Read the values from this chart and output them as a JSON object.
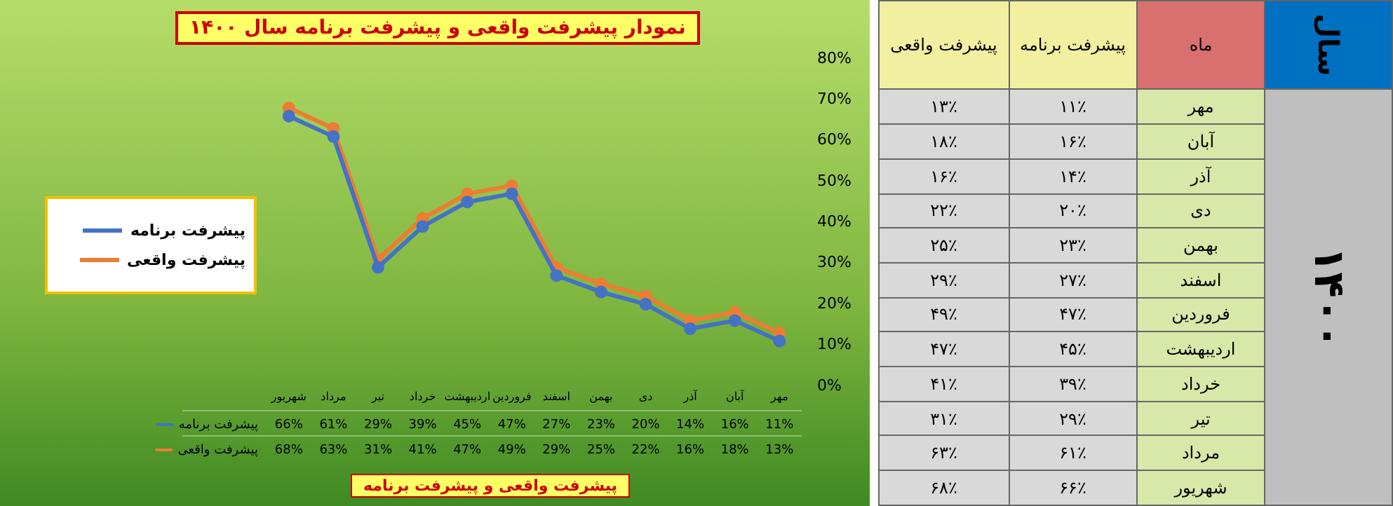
{
  "chart_data": [
    {
      "type": "line",
      "title": "نمودار پیشرفت واقعی و پیشرفت برنامه سال ۱۴۰۰",
      "xlabel": "پیشرفت واقعی و پیشرفت برنامه",
      "categories": [
        "شهریور",
        "مرداد",
        "تیر",
        "خرداد",
        "اردیبهشت",
        "فروردین",
        "اسفند",
        "بهمن",
        "دی",
        "آذر",
        "آبان",
        "مهر"
      ],
      "series": [
        {
          "name": "پیشرفت برنامه",
          "color": "#4472c4",
          "values": [
            66,
            61,
            29,
            39,
            45,
            47,
            27,
            23,
            20,
            14,
            16,
            11
          ],
          "value_labels": [
            "66%",
            "61%",
            "29%",
            "39%",
            "45%",
            "47%",
            "27%",
            "23%",
            "20%",
            "14%",
            "16%",
            "11%"
          ]
        },
        {
          "name": "پیشرفت واقعی",
          "color": "#ed7d31",
          "values": [
            68,
            63,
            31,
            41,
            47,
            49,
            29,
            25,
            22,
            16,
            18,
            13
          ],
          "value_labels": [
            "68%",
            "63%",
            "31%",
            "41%",
            "47%",
            "49%",
            "29%",
            "25%",
            "22%",
            "16%",
            "18%",
            "13%"
          ]
        }
      ],
      "ylim": [
        0,
        80
      ],
      "yticks": [
        {
          "value": 0,
          "label": "0%"
        },
        {
          "value": 10,
          "label": "10%"
        },
        {
          "value": 20,
          "label": "20%"
        },
        {
          "value": 30,
          "label": "30%"
        },
        {
          "value": 40,
          "label": "40%"
        },
        {
          "value": 50,
          "label": "50%"
        },
        {
          "value": 60,
          "label": "60%"
        },
        {
          "value": 70,
          "label": "70%"
        },
        {
          "value": 80,
          "label": "80%"
        }
      ],
      "grid": false,
      "legend": "left",
      "marker": "circle",
      "line_style": "solid"
    },
    {
      "type": "other",
      "annotations": [
        "سال",
        "ماه",
        "۱۴۰۰"
      ],
      "categories": [
        "مهر",
        "آبان",
        "آذر",
        "دی",
        "بهمن",
        "اسفند",
        "فروردین",
        "اردیبهشت",
        "خرداد",
        "تیر",
        "مرداد",
        "شهریور"
      ],
      "series": [
        {
          "name": "پیشرفت برنامه",
          "values": [
            11,
            16,
            14,
            20,
            23,
            27,
            47,
            45,
            39,
            29,
            61,
            66
          ],
          "value_labels": [
            "۱۱٪",
            "۱۶٪",
            "۱۴٪",
            "۲۰٪",
            "۲۳٪",
            "۲۷٪",
            "۴۷٪",
            "۴۵٪",
            "۳۹٪",
            "۲۹٪",
            "۶۱٪",
            "۶۶٪"
          ]
        },
        {
          "name": "پیشرفت واقعی",
          "values": [
            13,
            18,
            16,
            22,
            25,
            29,
            49,
            47,
            41,
            31,
            63,
            68
          ],
          "value_labels": [
            "۱۳٪",
            "۱۸٪",
            "۱۶٪",
            "۲۲٪",
            "۲۵٪",
            "۲۹٪",
            "۴۹٪",
            "۴۷٪",
            "۴۱٪",
            "۳۱٪",
            "۶۳٪",
            "۶۸٪"
          ]
        }
      ]
    }
  ]
}
